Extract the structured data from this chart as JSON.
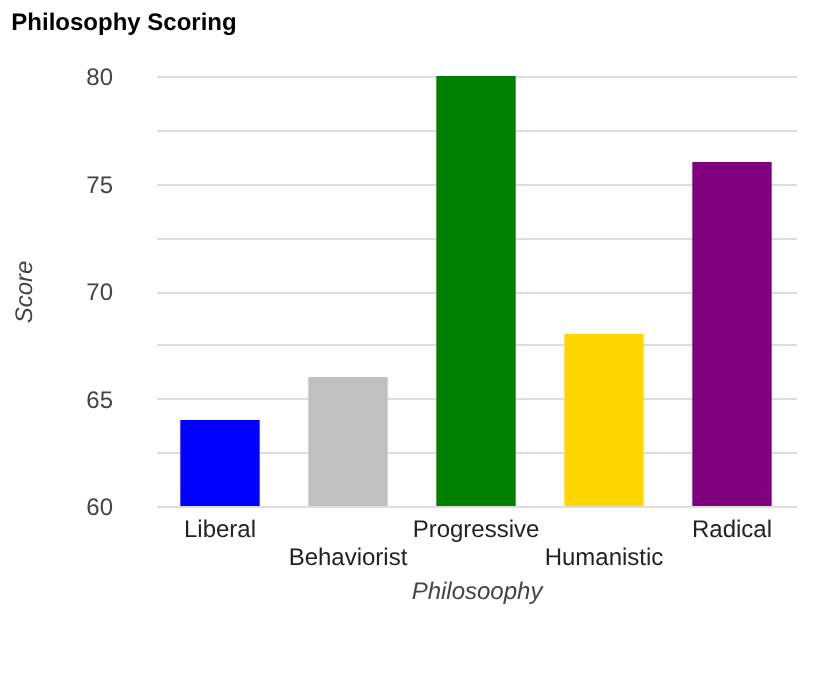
{
  "chart_data": {
    "type": "bar",
    "title": "Philosophy Scoring",
    "xlabel": "Philosoophy",
    "ylabel": "Score",
    "categories": [
      "Liberal",
      "Behaviorist",
      "Progressive",
      "Humanistic",
      "Radical"
    ],
    "values": [
      64,
      66,
      80,
      68,
      76
    ],
    "colors": [
      "#0000ff",
      "#c0c0c0",
      "#008000",
      "#ffd700",
      "#800080"
    ],
    "ylim": [
      60,
      80
    ],
    "yticks": [
      60,
      {
        "value": 62.5,
        "label": null
      },
      65,
      {
        "value": 67.5,
        "label": null
      },
      70,
      {
        "value": 72.5,
        "label": null
      },
      75,
      {
        "value": 77.5,
        "label": null
      },
      80
    ],
    "grid": "y",
    "legend": false
  }
}
